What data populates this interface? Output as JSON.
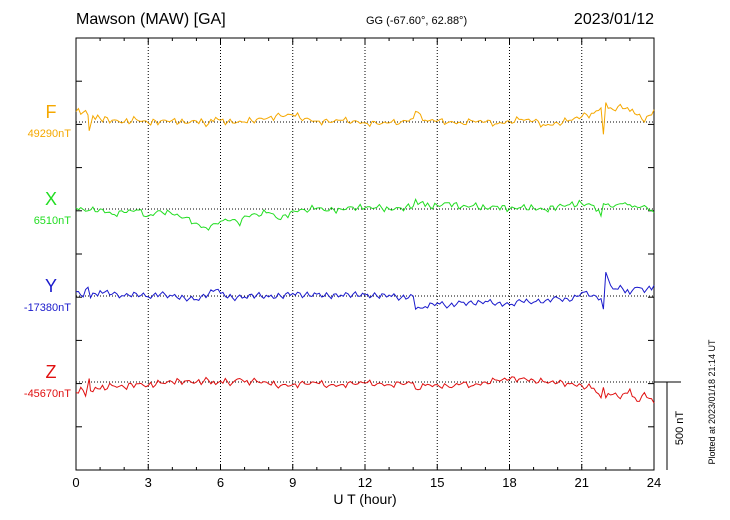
{
  "header": {
    "station": "Mawson (MAW)  [GA]",
    "coords": "GG (-67.60°,  62.88°)",
    "date": "2023/01/12"
  },
  "footer": {
    "plotted": "Plotted at 2023/01/18 21:14 UT"
  },
  "scale_bar": {
    "label": "500 nT",
    "value_nT": 500
  },
  "chart_data": {
    "type": "line",
    "title": "Mawson (MAW)  [GA]",
    "xlabel": "U T (hour)",
    "xlim": [
      0,
      24
    ],
    "xticks": [
      0,
      3,
      6,
      9,
      12,
      15,
      18,
      21,
      24
    ],
    "grid": true,
    "series": [
      {
        "name": "F",
        "baseline_label": "49290nT",
        "color": "#f5a800",
        "x": [
          0,
          0.3,
          0.5,
          0.55,
          0.7,
          1.0,
          1.5,
          2.0,
          2.5,
          3.0,
          3.5,
          4.0,
          4.5,
          5.0,
          5.5,
          5.6,
          6.0,
          6.5,
          6.8,
          7.0,
          7.5,
          8.0,
          8.5,
          9.0,
          9.5,
          10,
          10.5,
          11,
          11.5,
          12,
          12.5,
          13,
          13.5,
          14,
          14.1,
          14.5,
          15,
          15.5,
          16,
          16.5,
          17,
          17.5,
          18,
          18.5,
          19,
          19.5,
          20,
          20.5,
          21,
          21.5,
          21.8,
          21.9,
          22,
          22.3,
          22.6,
          23,
          23.3,
          23.6,
          24
        ],
        "values": [
          60,
          55,
          40,
          -50,
          35,
          20,
          10,
          0,
          15,
          -5,
          5,
          10,
          -5,
          5,
          -10,
          15,
          10,
          -5,
          5,
          0,
          15,
          25,
          35,
          40,
          20,
          5,
          0,
          10,
          5,
          -5,
          -10,
          -5,
          0,
          20,
          60,
          10,
          5,
          0,
          -5,
          5,
          0,
          -10,
          5,
          15,
          5,
          -20,
          -5,
          10,
          30,
          50,
          80,
          -70,
          110,
          70,
          100,
          60,
          40,
          0,
          70
        ]
      },
      {
        "name": "X",
        "baseline_label": "6510nT",
        "color": "#22dd22",
        "x": [
          0,
          0.5,
          1.0,
          1.5,
          2.0,
          2.5,
          3.0,
          3.5,
          4.0,
          4.5,
          5.0,
          5.5,
          5.6,
          6.0,
          6.5,
          6.8,
          7.0,
          7.5,
          8.0,
          8.5,
          9.0,
          9.5,
          10,
          10.5,
          11,
          11.5,
          12,
          12.5,
          13,
          13.5,
          14,
          14.1,
          14.5,
          15,
          15.5,
          16,
          16.5,
          17,
          17.5,
          18,
          18.5,
          19,
          19.5,
          20,
          20.5,
          21,
          21.5,
          21.8,
          21.9,
          22,
          22.3,
          22.6,
          23,
          23.3,
          23.6,
          24
        ],
        "values": [
          5,
          -10,
          0,
          -30,
          -20,
          -5,
          -40,
          -10,
          -30,
          -50,
          -80,
          -120,
          -95,
          -70,
          -60,
          -95,
          -40,
          -30,
          -20,
          -60,
          -10,
          -5,
          5,
          -10,
          0,
          10,
          5,
          10,
          0,
          5,
          15,
          55,
          15,
          20,
          35,
          10,
          20,
          5,
          15,
          0,
          10,
          5,
          -5,
          15,
          25,
          30,
          20,
          -40,
          30,
          25,
          10,
          30,
          25,
          10,
          20,
          -20
        ]
      },
      {
        "name": "Y",
        "baseline_label": "-17380nT",
        "color": "#1a1acc",
        "x": [
          0,
          0.3,
          0.5,
          0.6,
          1.0,
          1.5,
          2.0,
          2.5,
          3.0,
          3.5,
          4.0,
          4.5,
          5.0,
          5.5,
          5.8,
          6.0,
          6.5,
          7.0,
          7.5,
          8.0,
          8.5,
          9.0,
          9.5,
          10,
          10.5,
          11,
          11.5,
          12,
          12.5,
          13,
          13.5,
          14,
          14.1,
          14.5,
          15,
          15.5,
          16,
          16.5,
          17,
          17.5,
          18,
          18.5,
          19,
          19.5,
          20,
          20.5,
          21,
          21.5,
          21.8,
          21.9,
          22,
          22.3,
          22.6,
          23,
          23.3,
          23.6,
          24
        ],
        "values": [
          25,
          -5,
          50,
          -10,
          30,
          10,
          0,
          15,
          -5,
          10,
          0,
          -10,
          -20,
          10,
          35,
          15,
          -10,
          -5,
          5,
          -5,
          0,
          15,
          5,
          10,
          0,
          5,
          10,
          5,
          0,
          5,
          -10,
          0,
          -75,
          -60,
          -40,
          -55,
          -35,
          -45,
          -30,
          -40,
          -50,
          -30,
          -35,
          -25,
          -10,
          -30,
          20,
          5,
          -15,
          -75,
          135,
          40,
          60,
          10,
          50,
          20,
          60
        ]
      },
      {
        "name": "Z",
        "baseline_label": "-45670nT",
        "color": "#e01010",
        "x": [
          0,
          0.2,
          0.4,
          0.55,
          0.6,
          0.8,
          1.0,
          1.5,
          2.0,
          2.5,
          3.0,
          3.5,
          4.0,
          4.5,
          5.0,
          5.5,
          5.6,
          6.0,
          6.5,
          6.8,
          7.0,
          7.5,
          8.0,
          8.5,
          9.0,
          9.5,
          10,
          10.5,
          11,
          11.5,
          12,
          12.5,
          13,
          13.5,
          14,
          14.1,
          14.5,
          15,
          15.5,
          16,
          16.5,
          17,
          17.5,
          18,
          18.5,
          19,
          19.5,
          20,
          20.5,
          21,
          21.5,
          21.8,
          21.9,
          22,
          22.3,
          22.6,
          23,
          23.3,
          23.6,
          24
        ],
        "values": [
          -60,
          -30,
          -80,
          20,
          -50,
          -30,
          -40,
          -20,
          -30,
          -10,
          -20,
          -5,
          0,
          5,
          0,
          10,
          -10,
          5,
          -5,
          20,
          0,
          5,
          -10,
          -20,
          -15,
          -10,
          -5,
          -20,
          -15,
          -10,
          -5,
          -10,
          -15,
          -10,
          -5,
          -40,
          -20,
          -15,
          -30,
          -10,
          -20,
          0,
          10,
          15,
          20,
          10,
          0,
          -5,
          -10,
          -20,
          -35,
          -90,
          -30,
          -90,
          -70,
          -95,
          -40,
          -110,
          -60,
          -120
        ]
      }
    ]
  }
}
